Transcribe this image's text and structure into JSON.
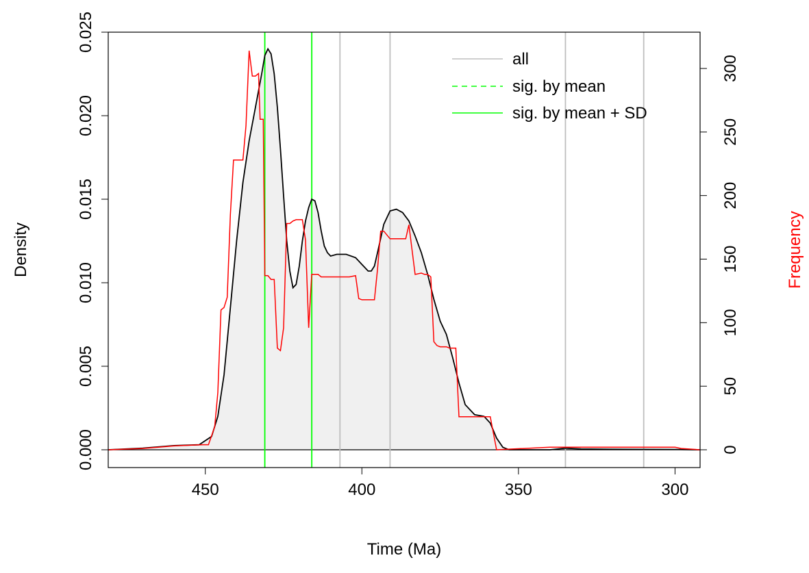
{
  "chart_data": {
    "type": "area",
    "xlabel": "Time (Ma)",
    "ylabel": "Density",
    "ylabel_right": "Frequency",
    "xlim": [
      481,
      292
    ],
    "ylim": [
      0,
      0.025
    ],
    "ylim_right": [
      0,
      330
    ],
    "x_ticks": [
      450,
      400,
      350,
      300
    ],
    "y_ticks": [
      0.0,
      0.005,
      0.01,
      0.015,
      0.02,
      0.025
    ],
    "y_tick_labels": [
      "0.000",
      "0.005",
      "0.010",
      "0.015",
      "0.020",
      "0.025"
    ],
    "y_right_ticks": [
      0,
      50,
      100,
      150,
      200,
      250,
      300
    ],
    "colors": {
      "density_line": "#000000",
      "density_fill": "#f0f0f0",
      "frequency_line": "#ff0000",
      "all_lines": "#bebebe",
      "sig_lines": "#00ff00",
      "right_axis_label": "#ff0000"
    },
    "legend": {
      "position": "top-right",
      "entries": [
        {
          "label": "all",
          "color": "#bebebe",
          "dash": "solid"
        },
        {
          "label": "sig. by mean",
          "color": "#00ff00",
          "dash": "dashed"
        },
        {
          "label": "sig. by mean + SD",
          "color": "#00ff00",
          "dash": "solid"
        }
      ]
    },
    "vertical_lines": [
      {
        "x": 431,
        "kind": "sig"
      },
      {
        "x": 416,
        "kind": "sig"
      },
      {
        "x": 407,
        "kind": "all"
      },
      {
        "x": 391,
        "kind": "all"
      },
      {
        "x": 335,
        "kind": "all"
      },
      {
        "x": 310,
        "kind": "all"
      }
    ],
    "series": [
      {
        "role": "density",
        "x": [
          481,
          470,
          460,
          452,
          448,
          446,
          444,
          442,
          440,
          438,
          436,
          434,
          432,
          431,
          430,
          429,
          428,
          427,
          426,
          425,
          424,
          423,
          422,
          421,
          420,
          419,
          418,
          417,
          416,
          415,
          414,
          413,
          412,
          411,
          410,
          408,
          405,
          402,
          400,
          398,
          397,
          396,
          395,
          393,
          391,
          389,
          387,
          385,
          383,
          381,
          379,
          377,
          375,
          373,
          371,
          369,
          367,
          364,
          361,
          359,
          357,
          355,
          353,
          340,
          335,
          330,
          315,
          300,
          292
        ],
        "y": [
          0.0,
          0.0001,
          0.00025,
          0.0003,
          0.0008,
          0.002,
          0.0045,
          0.0085,
          0.0125,
          0.016,
          0.0185,
          0.0205,
          0.0225,
          0.0236,
          0.024,
          0.0237,
          0.0225,
          0.0205,
          0.018,
          0.0152,
          0.0125,
          0.0107,
          0.0097,
          0.0099,
          0.011,
          0.0125,
          0.0137,
          0.0145,
          0.015,
          0.0149,
          0.0142,
          0.0131,
          0.0122,
          0.0118,
          0.0116,
          0.0117,
          0.0117,
          0.0115,
          0.0111,
          0.0107,
          0.0107,
          0.011,
          0.0118,
          0.0135,
          0.0143,
          0.0144,
          0.0142,
          0.0137,
          0.0128,
          0.0118,
          0.0105,
          0.009,
          0.0077,
          0.0069,
          0.0055,
          0.004,
          0.0027,
          0.0021,
          0.002,
          0.0016,
          0.0007,
          0.00015,
          0.0,
          0.0,
          0.0001,
          5e-05,
          3e-05,
          2e-05,
          0.0
        ]
      },
      {
        "role": "frequency",
        "x": [
          481,
          470,
          460,
          451,
          449,
          447,
          446,
          445,
          444,
          443,
          442,
          441,
          440,
          439,
          438,
          437,
          436,
          435,
          434,
          433,
          432.5,
          432,
          431.5,
          431,
          430,
          429,
          428,
          427,
          426,
          425,
          424,
          423,
          422,
          421,
          420,
          419,
          418,
          417,
          416,
          415,
          414,
          413,
          412,
          411,
          410,
          407,
          406,
          404,
          402,
          401,
          400,
          397,
          396,
          395,
          394,
          393,
          391,
          388,
          387,
          386,
          385,
          383,
          381,
          380,
          379,
          378,
          377,
          376,
          375,
          373,
          372,
          371,
          370,
          369,
          362,
          361,
          360,
          359,
          357,
          340,
          300,
          298,
          292
        ],
        "y": [
          0,
          1,
          3,
          4,
          4,
          18,
          45,
          110,
          112,
          120,
          185,
          228,
          228,
          228,
          228,
          255,
          314,
          294,
          294,
          296,
          260,
          260,
          260,
          137,
          137,
          134,
          134,
          80,
          78,
          96,
          178,
          178,
          180,
          181,
          181,
          181,
          165,
          96,
          138,
          138,
          138,
          136,
          136,
          136,
          136,
          136,
          136,
          136,
          137,
          119,
          118,
          118,
          118,
          142,
          172,
          172,
          166,
          166,
          166,
          166,
          177,
          138,
          139,
          138,
          138,
          136,
          85,
          82,
          81,
          81,
          80,
          80,
          80,
          26,
          26,
          26,
          26,
          26,
          0,
          2,
          2,
          1,
          0
        ]
      }
    ]
  }
}
